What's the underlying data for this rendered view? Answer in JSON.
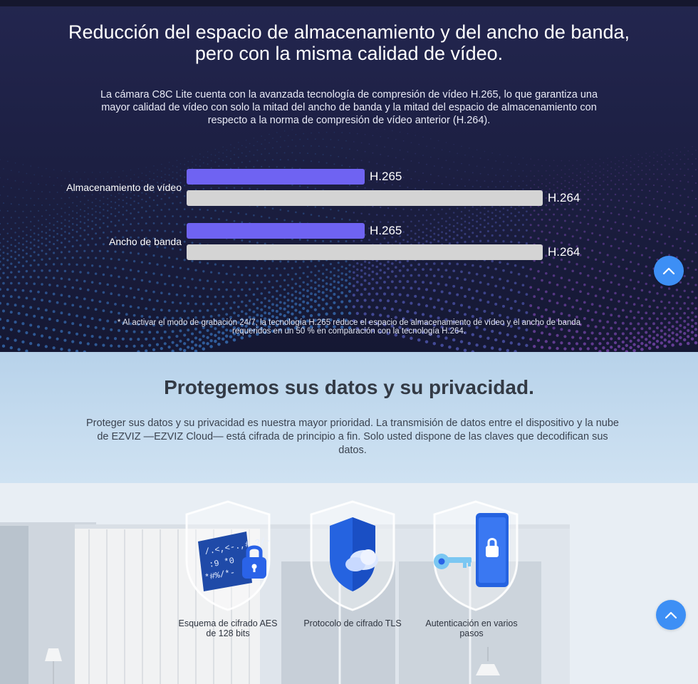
{
  "section_storage": {
    "title": "Reducción del espacio de almacenamiento y del ancho de banda, pero con la misma calidad de vídeo.",
    "description": "La cámara C8C Lite cuenta con la avanzada tecnología de compresión de vídeo H.265, lo que garantiza una mayor calidad de vídeo con solo la mitad del ancho de banda y la mitad del espacio de almacenamiento con respecto a la norma de compresión de vídeo anterior (H.264).",
    "footnote": "* Al activar el modo de grabación 24/7, la tecnología H.265 reduce el espacio de almacenamiento de vídeo y el ancho de banda requeridos en un 50 % en comparación con la tecnología H.264."
  },
  "chart_data": {
    "type": "bar",
    "orientation": "horizontal",
    "categories": [
      "Almacenamiento de vídeo",
      "Ancho de banda"
    ],
    "series": [
      {
        "name": "H.265",
        "values": [
          50,
          50
        ],
        "color": "#6f63f2"
      },
      {
        "name": "H.264",
        "values": [
          100,
          100
        ],
        "color": "#d4d4d4"
      }
    ],
    "xlim": [
      0,
      100
    ],
    "grid": false
  },
  "section_privacy": {
    "title": "Protegemos sus datos y su privacidad.",
    "description": "Proteger sus datos y su privacidad es nuestra mayor prioridad. La transmisión de datos entre el dispositivo y la nube de EZVIZ —EZVIZ Cloud— está cifrada de principio a fin. Solo usted dispone de las claves que decodifican sus datos."
  },
  "features": [
    {
      "label": "Esquema de cifrado AES de 128 bits",
      "icon": "code-lock-icon"
    },
    {
      "label": "Protocolo de cifrado TLS",
      "icon": "cloud-shield-icon"
    },
    {
      "label": "Autenticación en varios pasos",
      "icon": "key-phone-lock-icon"
    }
  ],
  "buttons": {
    "scroll_top_icon": "chevron-up-icon"
  },
  "colors": {
    "h265_bar": "#6f63f2",
    "h264_bar": "#d4d4d4",
    "scroll_button": "#3d8ff5",
    "dark_section_bg": "#1d2044"
  }
}
